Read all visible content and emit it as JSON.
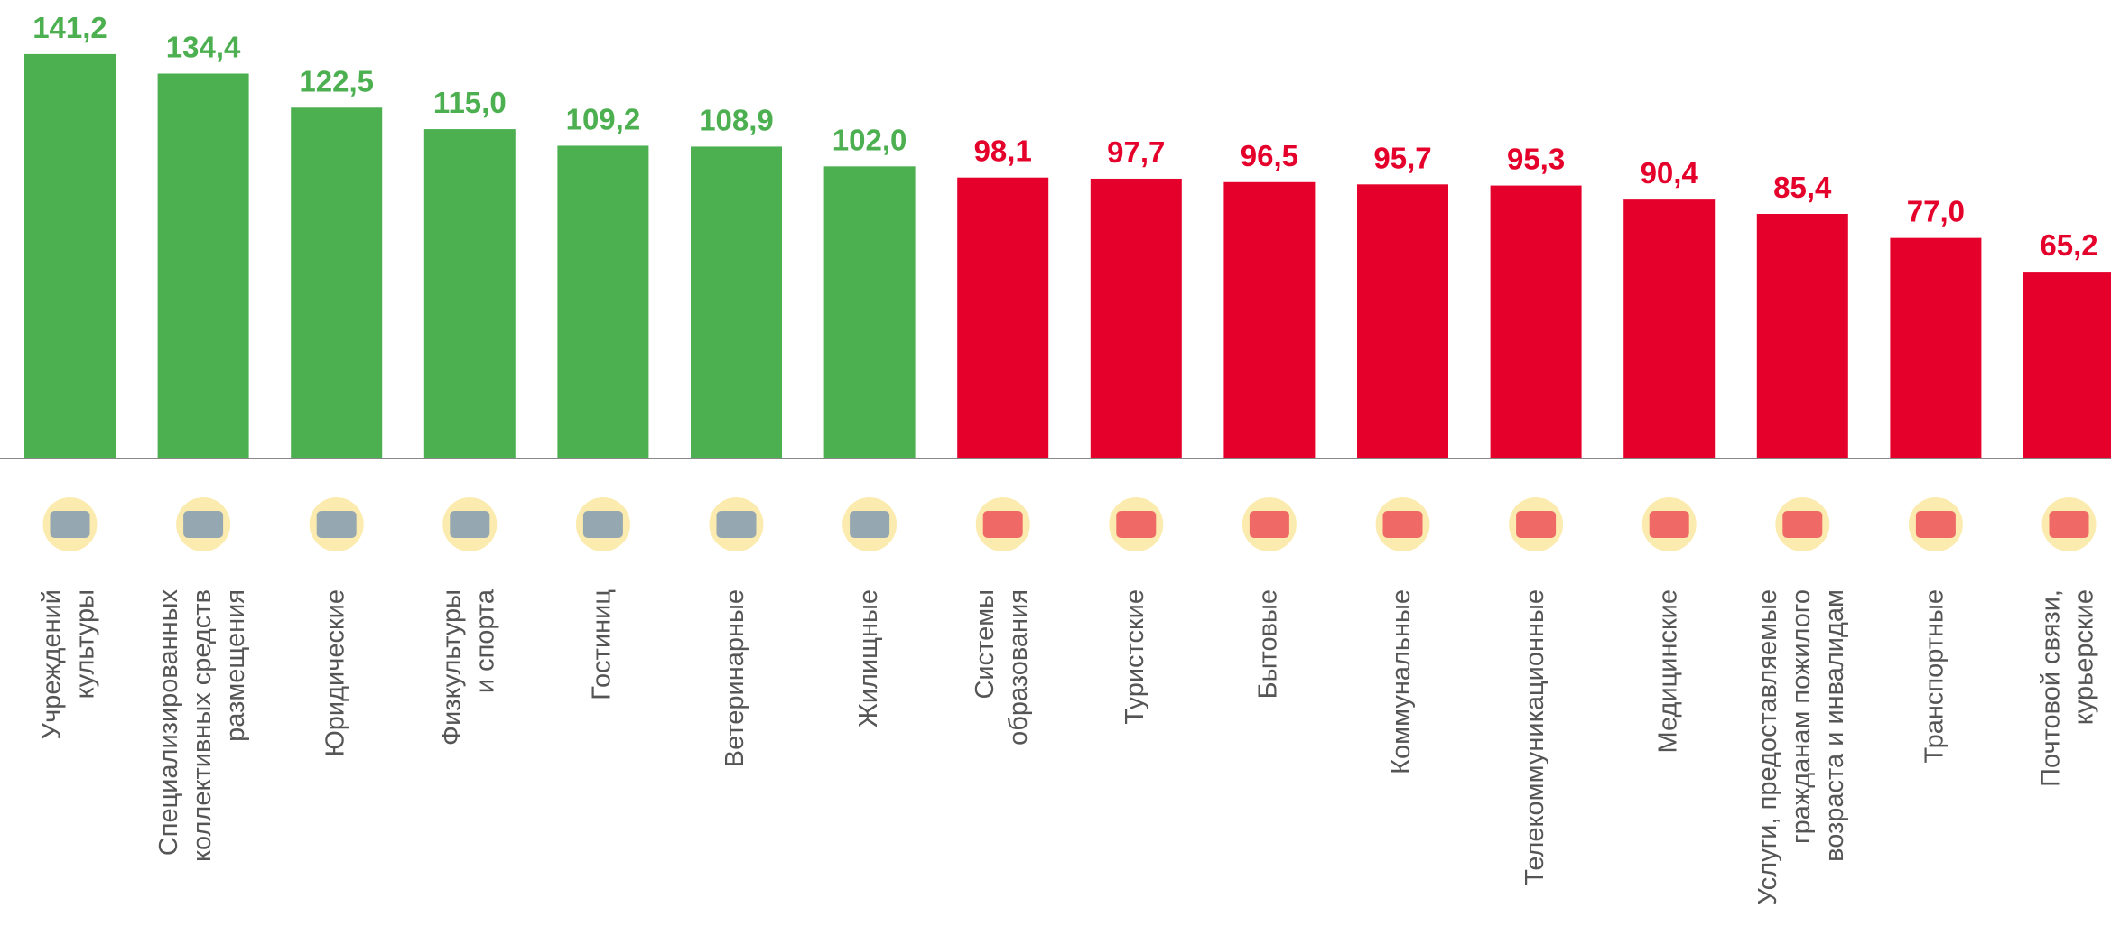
{
  "chart_data": {
    "type": "bar",
    "categories": [
      [
        "Учреждений",
        "культуры"
      ],
      [
        "Специализированных",
        "коллективных средств",
        "размещения"
      ],
      [
        "Юридические"
      ],
      [
        "Физкультуры",
        "и спорта"
      ],
      [
        "Гостиниц"
      ],
      [
        "Ветеринарные"
      ],
      [
        "Жилищные"
      ],
      [
        "Системы",
        "образования"
      ],
      [
        "Туристские"
      ],
      [
        "Бытовые"
      ],
      [
        "Коммунальные"
      ],
      [
        "Телекоммуникационные"
      ],
      [
        "Медицинские"
      ],
      [
        "Услуги, предоставляемые",
        "гражданам пожилого",
        "возраста и инвалидам"
      ],
      [
        "Транспортные"
      ],
      [
        "Почтовой связи,",
        "курьерские"
      ]
    ],
    "values": [
      141.2,
      134.4,
      122.5,
      115.0,
      109.2,
      108.9,
      102.0,
      98.1,
      97.7,
      96.5,
      95.7,
      95.3,
      90.4,
      85.4,
      77.0,
      65.2
    ],
    "value_labels": [
      "141,2",
      "134,4",
      "122,5",
      "115,0",
      "109,2",
      "108,9",
      "102,0",
      "98,1",
      "97,7",
      "96,5",
      "95,7",
      "95,3",
      "90,4",
      "85,4",
      "77,0",
      "65,2"
    ],
    "colors": [
      "#4caf50",
      "#4caf50",
      "#4caf50",
      "#4caf50",
      "#4caf50",
      "#4caf50",
      "#4caf50",
      "#e4002b",
      "#e4002b",
      "#e4002b",
      "#e4002b",
      "#e4002b",
      "#e4002b",
      "#e4002b",
      "#e4002b",
      "#e4002b"
    ],
    "ylim": [
      0,
      150
    ]
  }
}
